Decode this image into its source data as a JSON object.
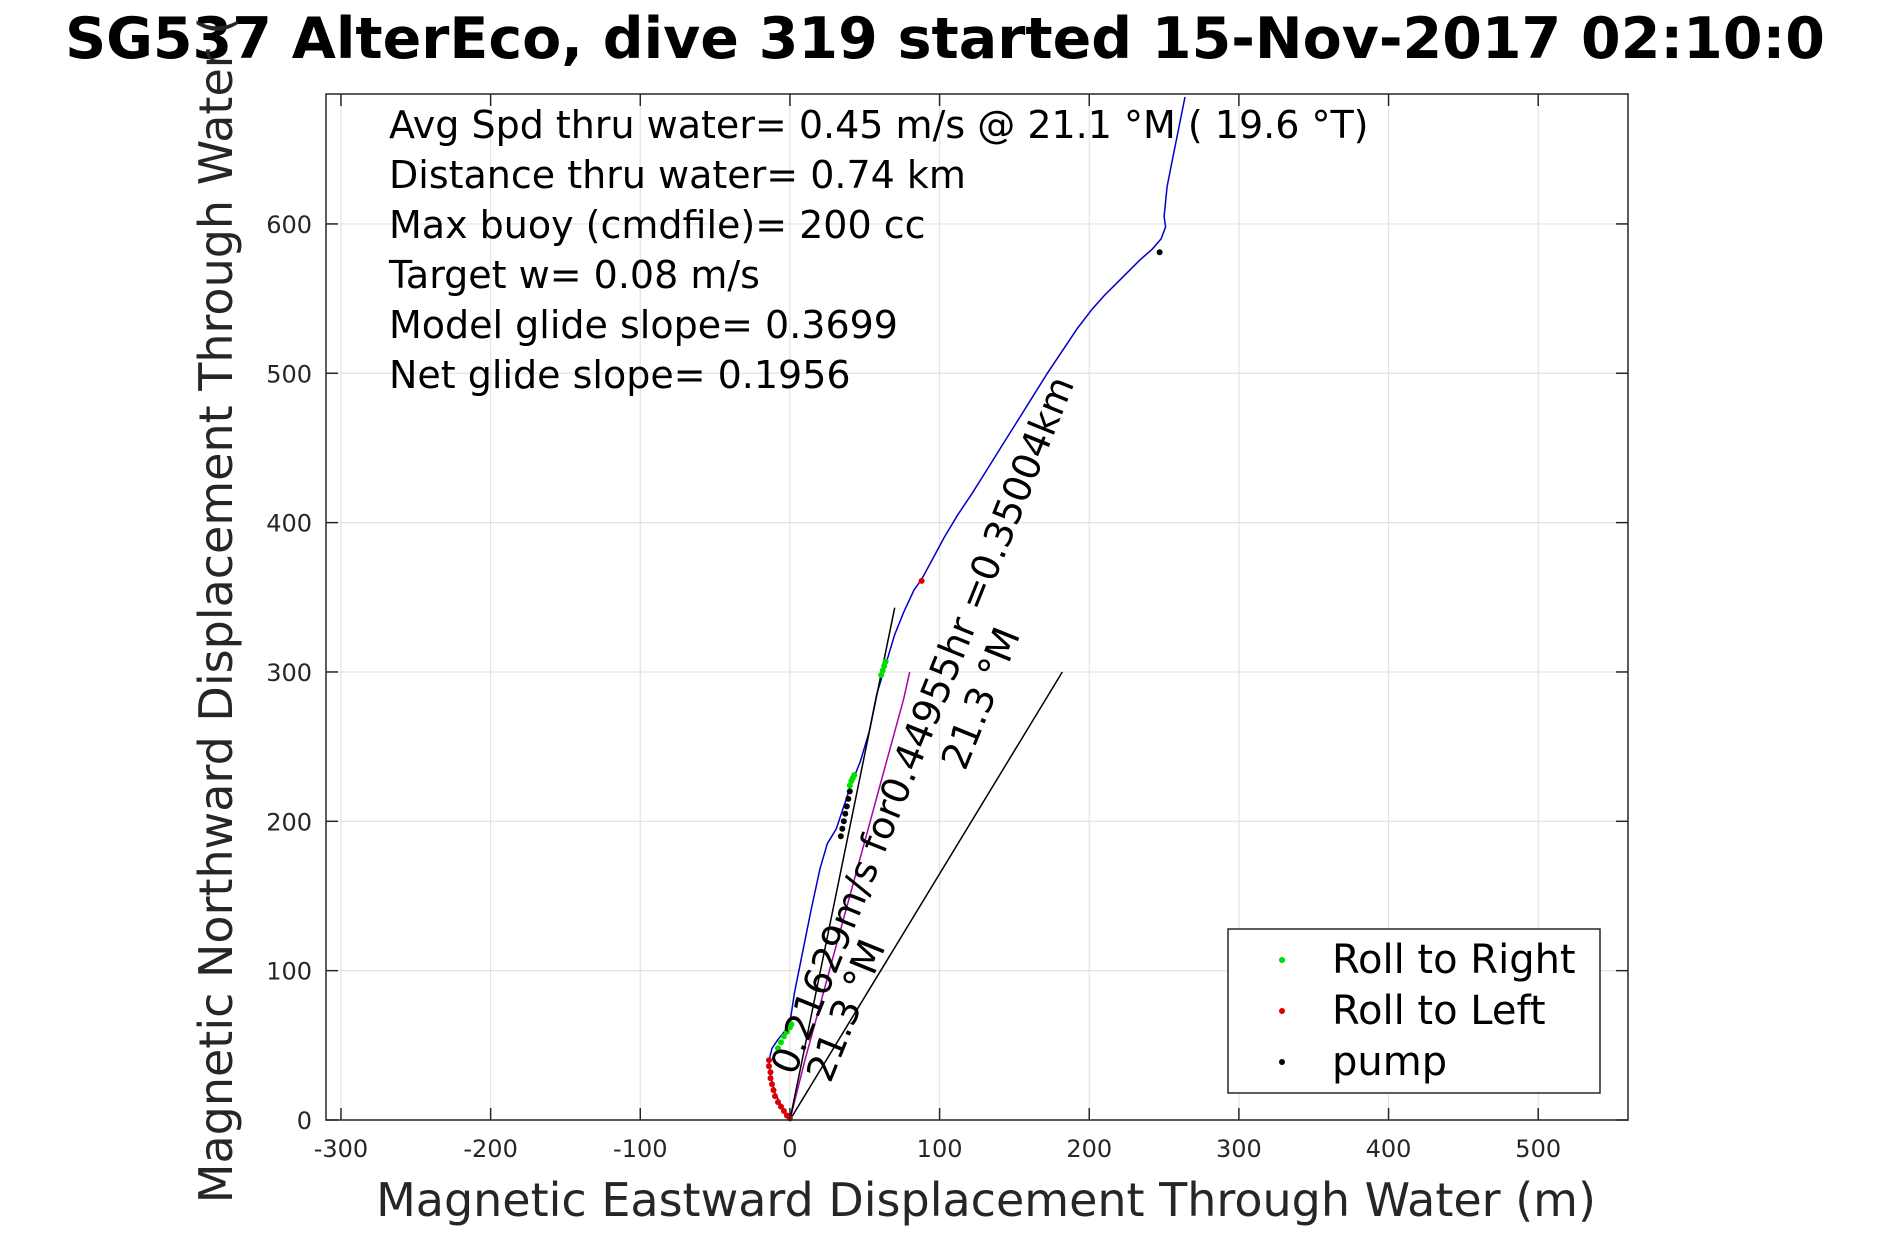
{
  "chart_data": {
    "type": "line",
    "title": "SG537 AlterEco, dive 319 started 15-Nov-2017 02:10:0",
    "xlabel": "Magnetic Eastward Displacement Through Water (m)",
    "ylabel": "Magnetic Northward Displacement Through Water (",
    "xlim": [
      -310,
      560
    ],
    "ylim": [
      0,
      687
    ],
    "xticks": [
      -300,
      -200,
      -100,
      0,
      100,
      200,
      300,
      400,
      500
    ],
    "xtick_labels": [
      "-300",
      "-200",
      "-100",
      "0",
      "100",
      "200",
      "300",
      "400",
      "500"
    ],
    "yticks": [
      0,
      100,
      200,
      300,
      400,
      500,
      600
    ],
    "ytick_labels": [
      "0",
      "100",
      "200",
      "300",
      "400",
      "500",
      "600"
    ],
    "grid": true,
    "legend_position": "bottom-right",
    "colors": {
      "track": "#0000cc",
      "roll_right": "#00dd00",
      "roll_left": "#dd0000",
      "pump": "#000000",
      "heading_line": "#000000",
      "magenta_track": "#aa00aa"
    },
    "annotations": [
      "Avg Spd thru water=  0.45 m/s @  21.1 °M ( 19.6 °T)",
      "Distance thru water=  0.74 km",
      "Max buoy (cmdfile)= 200 cc",
      "Target w= 0.08 m/s",
      "Model glide slope= 0.3699",
      "Net glide slope= 0.1956"
    ],
    "rotated_labels": [
      {
        "text": "0.21629m/s for0.44955hr =0.35004km",
        "x": 3,
        "y": 29,
        "angle_deg": -68
      },
      {
        "text": "21.3 °M",
        "x": 27,
        "y": 24,
        "angle_deg": -68
      },
      {
        "text": "21.3 °M",
        "x": 117,
        "y": 233,
        "angle_deg": -68
      }
    ],
    "series": [
      {
        "name": "",
        "style": "line",
        "color": "#0000cc",
        "x": [
          0,
          -5,
          -10,
          -13,
          -14,
          -12,
          -8,
          -3,
          0,
          3,
          8,
          14,
          20,
          25,
          31,
          36,
          41,
          47,
          53,
          58,
          64,
          70,
          76,
          83,
          88,
          95,
          103,
          112,
          122,
          132,
          142,
          152,
          162,
          172,
          182,
          192,
          202,
          210,
          218,
          226,
          234,
          242,
          248,
          251,
          250,
          252,
          256,
          260,
          264
        ],
        "y": [
          0,
          8,
          18,
          30,
          40,
          48,
          54,
          60,
          65,
          85,
          110,
          140,
          168,
          185,
          195,
          210,
          225,
          240,
          260,
          285,
          305,
          325,
          340,
          355,
          362,
          375,
          390,
          405,
          420,
          436,
          452,
          468,
          484,
          500,
          515,
          530,
          543,
          552,
          560,
          568,
          576,
          583,
          590,
          598,
          605,
          625,
          645,
          665,
          685
        ]
      },
      {
        "name": "",
        "style": "line",
        "color": "#aa00aa",
        "x": [
          0,
          5,
          10,
          16,
          22,
          28,
          34,
          40,
          46,
          52,
          58,
          64,
          70,
          76,
          80
        ],
        "y": [
          0,
          20,
          40,
          62,
          84,
          106,
          128,
          150,
          172,
          194,
          216,
          238,
          260,
          282,
          300
        ]
      },
      {
        "name": "",
        "style": "line",
        "color": "#000000",
        "x": [
          0,
          70
        ],
        "y": [
          0,
          343
        ]
      },
      {
        "name": "",
        "style": "line",
        "color": "#000000",
        "x": [
          0,
          182
        ],
        "y": [
          0,
          300
        ]
      },
      {
        "name": "Roll to Right",
        "style": "markers",
        "color": "#00dd00",
        "x": [
          -8,
          -6,
          -4,
          -2,
          0,
          1,
          40,
          41,
          42,
          43,
          61,
          62,
          63,
          64
        ],
        "y": [
          48,
          52,
          56,
          59,
          62,
          64,
          224,
          227,
          229,
          231,
          298,
          301,
          304,
          307
        ]
      },
      {
        "name": "Roll to Left",
        "style": "markers",
        "color": "#dd0000",
        "x": [
          -14,
          -14,
          -13,
          -13,
          -12,
          -11,
          -10,
          -8,
          -6,
          -4,
          -2,
          0,
          88
        ],
        "y": [
          40,
          36,
          32,
          28,
          24,
          20,
          16,
          12,
          9,
          6,
          3,
          1,
          361
        ]
      },
      {
        "name": "pump",
        "style": "markers",
        "color": "#000000",
        "x": [
          34,
          35,
          36,
          37,
          38,
          39,
          40,
          247
        ],
        "y": [
          190,
          195,
          200,
          205,
          210,
          215,
          220,
          581
        ]
      }
    ]
  }
}
